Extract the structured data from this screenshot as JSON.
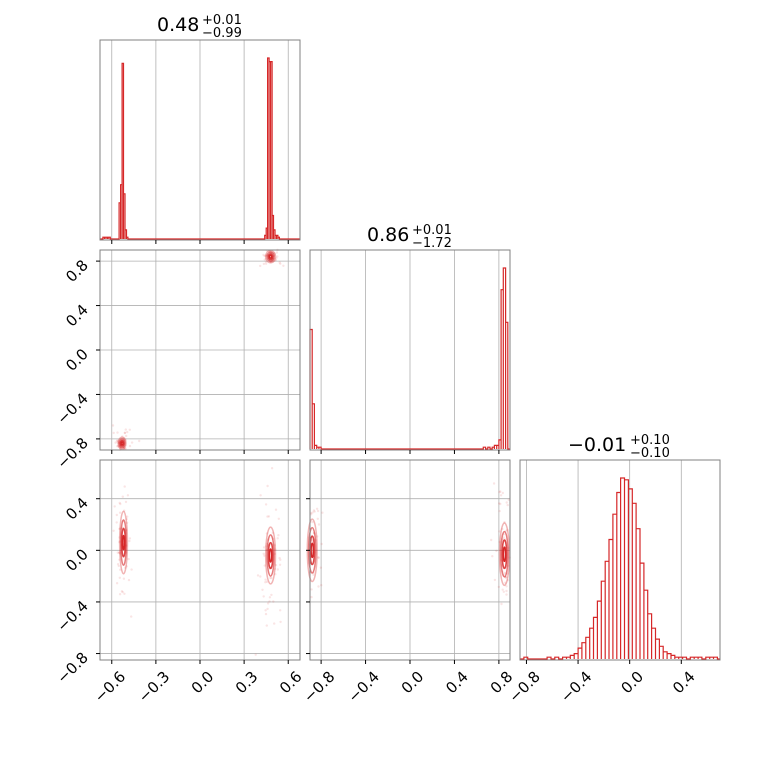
{
  "chart_data": {
    "type": "corner",
    "colors": {
      "accent": "#d62728",
      "grid": "#b0b0b0",
      "frame": "#808080"
    },
    "parameters": [
      {
        "median": "0.48",
        "upper": "+0.01",
        "lower": "−0.99",
        "range": [
          -0.68,
          0.68
        ],
        "ticks": [
          -0.6,
          -0.3,
          0.0,
          0.3,
          0.6
        ],
        "tick_labels": [
          "−0.6",
          "−0.3",
          "0.0",
          "0.3",
          "0.6"
        ]
      },
      {
        "median": "0.86",
        "upper": "+0.01",
        "lower": "−1.72",
        "range": [
          -0.9,
          0.9
        ],
        "ticks": [
          -0.8,
          -0.4,
          0.0,
          0.4,
          0.8
        ],
        "tick_labels": [
          "−0.8",
          "−0.4",
          "0.0",
          "0.4",
          "0.8"
        ]
      },
      {
        "median": "−0.01",
        "upper": "+0.10",
        "lower": "−0.10",
        "range": [
          -0.85,
          0.7
        ],
        "ticks": [
          -0.8,
          -0.4,
          0.0,
          0.4
        ],
        "tick_labels": [
          "−0.8",
          "−0.4",
          "0.0",
          "0.4"
        ]
      }
    ],
    "y_ticks": {
      "row2": {
        "ticks": [
          0.8,
          0.4,
          0.0,
          -0.4,
          -0.8
        ],
        "tick_labels": [
          "0.8",
          "0.4",
          "0.0",
          "−0.4",
          "−0.8"
        ]
      },
      "row3": {
        "ticks": [
          0.4,
          0.0,
          -0.4,
          -0.8
        ],
        "tick_labels": [
          "0.4",
          "0.0",
          "−0.4",
          "−0.8"
        ]
      }
    },
    "histograms": [
      {
        "bin_width": 0.01,
        "bars": [
          [
            -0.66,
            0.01
          ],
          [
            -0.65,
            0.01
          ],
          [
            -0.64,
            0.01
          ],
          [
            -0.63,
            0.01
          ],
          [
            -0.62,
            0.01
          ],
          [
            -0.55,
            0.2
          ],
          [
            -0.54,
            0.3
          ],
          [
            -0.53,
            0.97
          ],
          [
            -0.52,
            0.25
          ],
          [
            -0.51,
            0.05
          ],
          [
            -0.5,
            0.01
          ],
          [
            0.44,
            0.02
          ],
          [
            0.45,
            0.06
          ],
          [
            0.46,
            1.0
          ],
          [
            0.47,
            0.98
          ],
          [
            0.48,
            0.98
          ],
          [
            0.49,
            0.13
          ],
          [
            0.5,
            0.05
          ],
          [
            0.51,
            0.02
          ],
          [
            0.52,
            0.02
          ],
          [
            0.53,
            0.01
          ]
        ]
      },
      {
        "bin_width": 0.02,
        "bars": [
          [
            -0.9,
            0.66
          ],
          [
            -0.88,
            0.25
          ],
          [
            -0.86,
            0.02
          ],
          [
            -0.84,
            0.01
          ],
          [
            -0.82,
            0.01
          ],
          [
            0.66,
            0.01
          ],
          [
            0.7,
            0.01
          ],
          [
            0.74,
            0.01
          ],
          [
            0.76,
            0.02
          ],
          [
            0.78,
            0.02
          ],
          [
            0.8,
            0.05
          ],
          [
            0.82,
            0.88
          ],
          [
            0.84,
            1.0
          ],
          [
            0.86,
            0.7
          ]
        ]
      },
      {
        "bin_width": 0.03,
        "bars": [
          [
            -0.85,
            0.0
          ],
          [
            -0.82,
            0.01
          ],
          [
            -0.79,
            0.0
          ],
          [
            -0.64,
            0.01
          ],
          [
            -0.61,
            0.0
          ],
          [
            -0.58,
            0.01
          ],
          [
            -0.55,
            0.0
          ],
          [
            -0.52,
            0.01
          ],
          [
            -0.49,
            0.01
          ],
          [
            -0.46,
            0.02
          ],
          [
            -0.43,
            0.03
          ],
          [
            -0.4,
            0.06
          ],
          [
            -0.37,
            0.09
          ],
          [
            -0.34,
            0.12
          ],
          [
            -0.31,
            0.17
          ],
          [
            -0.28,
            0.23
          ],
          [
            -0.25,
            0.32
          ],
          [
            -0.22,
            0.43
          ],
          [
            -0.19,
            0.54
          ],
          [
            -0.16,
            0.66
          ],
          [
            -0.13,
            0.8
          ],
          [
            -0.1,
            0.92
          ],
          [
            -0.07,
            1.0
          ],
          [
            -0.04,
            0.99
          ],
          [
            -0.01,
            0.94
          ],
          [
            0.02,
            0.86
          ],
          [
            0.05,
            0.72
          ],
          [
            0.08,
            0.53
          ],
          [
            0.11,
            0.38
          ],
          [
            0.14,
            0.25
          ],
          [
            0.17,
            0.17
          ],
          [
            0.2,
            0.11
          ],
          [
            0.23,
            0.07
          ],
          [
            0.26,
            0.04
          ],
          [
            0.29,
            0.03
          ],
          [
            0.32,
            0.02
          ],
          [
            0.35,
            0.01
          ],
          [
            0.38,
            0.01
          ],
          [
            0.41,
            0.01
          ],
          [
            0.44,
            0.0
          ],
          [
            0.47,
            0.01
          ],
          [
            0.5,
            0.01
          ],
          [
            0.53,
            0.01
          ],
          [
            0.56,
            0.0
          ],
          [
            0.59,
            0.01
          ],
          [
            0.62,
            0.01
          ],
          [
            0.65,
            0.01
          ]
        ]
      }
    ],
    "clusters": [
      {
        "panel": "1-2",
        "x": -0.53,
        "y": -0.84,
        "sx": 0.012,
        "sy": 0.025
      },
      {
        "panel": "1-2",
        "x": 0.48,
        "y": 0.84,
        "sx": 0.015,
        "sy": 0.025
      },
      {
        "panel": "1-3",
        "x": -0.52,
        "y": 0.06,
        "sx": 0.012,
        "sy": 0.11
      },
      {
        "panel": "1-3",
        "x": 0.48,
        "y": -0.04,
        "sx": 0.015,
        "sy": 0.1
      },
      {
        "panel": "2-3",
        "x": -0.88,
        "y": 0.0,
        "sx": 0.02,
        "sy": 0.11
      },
      {
        "panel": "2-3",
        "x": 0.85,
        "y": -0.03,
        "sx": 0.02,
        "sy": 0.11
      }
    ]
  }
}
